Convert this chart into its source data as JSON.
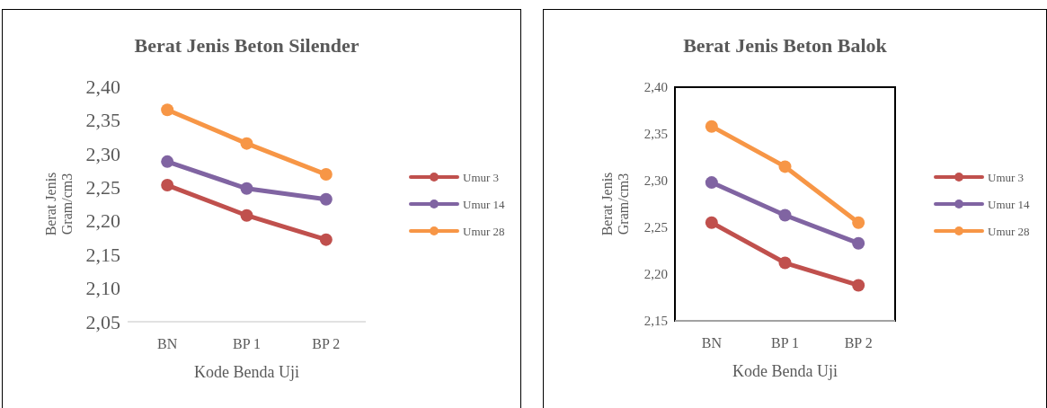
{
  "chart_data": [
    {
      "type": "line",
      "title": "Berat Jenis Beton Silender",
      "xlabel": "Kode Benda Uji",
      "ylabel": "Berat Jenis Gram/cm3",
      "categories": [
        "BN",
        "BP 1",
        "BP 2"
      ],
      "ylim": [
        2.05,
        2.4
      ],
      "yticks": [
        {
          "value": 2.05,
          "label": "2,05"
        },
        {
          "value": 2.1,
          "label": "2,10"
        },
        {
          "value": 2.15,
          "label": "2,15"
        },
        {
          "value": 2.2,
          "label": "2,20"
        },
        {
          "value": 2.25,
          "label": "2,25"
        },
        {
          "value": 2.3,
          "label": "2,30"
        },
        {
          "value": 2.35,
          "label": "2,35"
        },
        {
          "value": 2.4,
          "label": "2,40"
        }
      ],
      "legend": "right",
      "marker": "circle",
      "series": [
        {
          "name": "Umur 3",
          "color": "#c0504d",
          "values": [
            2.253,
            2.208,
            2.172
          ]
        },
        {
          "name": "Umur 14",
          "color": "#8064a2",
          "values": [
            2.288,
            2.248,
            2.232
          ]
        },
        {
          "name": "Umur 28",
          "color": "#f79646",
          "values": [
            2.365,
            2.315,
            2.269
          ]
        }
      ]
    },
    {
      "type": "line",
      "title": "Berat Jenis Beton  Balok",
      "xlabel": "Kode Benda Uji",
      "ylabel": "Berat Jenis Gram/cm3",
      "categories": [
        "BN",
        "BP 1",
        "BP 2"
      ],
      "ylim": [
        2.15,
        2.4
      ],
      "yticks": [
        {
          "value": 2.15,
          "label": "2,15"
        },
        {
          "value": 2.2,
          "label": "2,20"
        },
        {
          "value": 2.25,
          "label": "2,25"
        },
        {
          "value": 2.3,
          "label": "2,30"
        },
        {
          "value": 2.35,
          "label": "2,35"
        },
        {
          "value": 2.4,
          "label": "2,40"
        }
      ],
      "legend": "right",
      "marker": "circle",
      "series": [
        {
          "name": "Umur 3",
          "color": "#c0504d",
          "values": [
            2.255,
            2.212,
            2.188
          ]
        },
        {
          "name": "Umur 14",
          "color": "#8064a2",
          "values": [
            2.298,
            2.263,
            2.233
          ]
        },
        {
          "name": "Umur 28",
          "color": "#f79646",
          "values": [
            2.358,
            2.315,
            2.255
          ]
        }
      ]
    }
  ]
}
